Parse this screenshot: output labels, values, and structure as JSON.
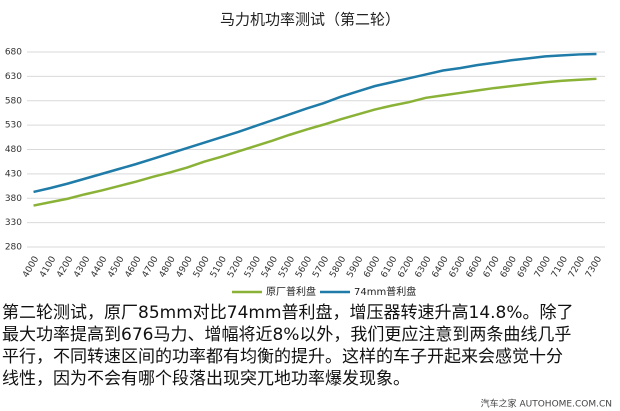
{
  "chart_data": {
    "type": "line",
    "title": "马力机功率测试（第二轮）",
    "categories": [
      "4000",
      "4100",
      "4200",
      "4300",
      "4400",
      "4500",
      "4600",
      "4700",
      "4800",
      "4900",
      "5000",
      "5100",
      "5200",
      "5300",
      "5400",
      "5500",
      "5600",
      "5700",
      "5800",
      "5900",
      "6000",
      "6100",
      "6200",
      "6300",
      "6400",
      "6500",
      "6600",
      "6700",
      "6800",
      "6900",
      "7000",
      "7100",
      "7200",
      "7300"
    ],
    "series": [
      {
        "name": "原厂普利盘",
        "color": "#8ab237",
        "values": [
          365,
          372,
          379,
          388,
          396,
          405,
          414,
          424,
          433,
          443,
          455,
          465,
          476,
          487,
          498,
          510,
          521,
          531,
          542,
          552,
          562,
          570,
          577,
          586,
          591,
          596,
          601,
          606,
          610,
          614,
          618,
          621,
          623,
          625
        ]
      },
      {
        "name": "74mm普利盘",
        "color": "#1f7ba8",
        "values": [
          393,
          401,
          410,
          420,
          430,
          440,
          450,
          461,
          472,
          483,
          494,
          505,
          516,
          528,
          540,
          552,
          564,
          575,
          588,
          599,
          610,
          618,
          626,
          634,
          642,
          647,
          653,
          658,
          663,
          667,
          671,
          673,
          675,
          676
        ]
      }
    ],
    "ylim": [
      280,
      680
    ],
    "yticks": [
      280,
      330,
      380,
      430,
      480,
      530,
      580,
      630,
      680
    ],
    "grid": true,
    "legend": "bottom"
  },
  "caption": [
    "第二轮测试，原厂85mm对比74mm普利盘，增压器转速升高14.8%。除了",
    "最大功率提高到676马力、增幅将近8%以外，我们更应注意到两条曲线几乎",
    "平行，不同转速区间的功率都有均衡的提升。这样的车子开起来会感觉十分",
    "线性，因为不会有哪个段落出现突兀地功率爆发现象。"
  ],
  "watermark": "汽车之家 AUTOHOME.COM.CN"
}
